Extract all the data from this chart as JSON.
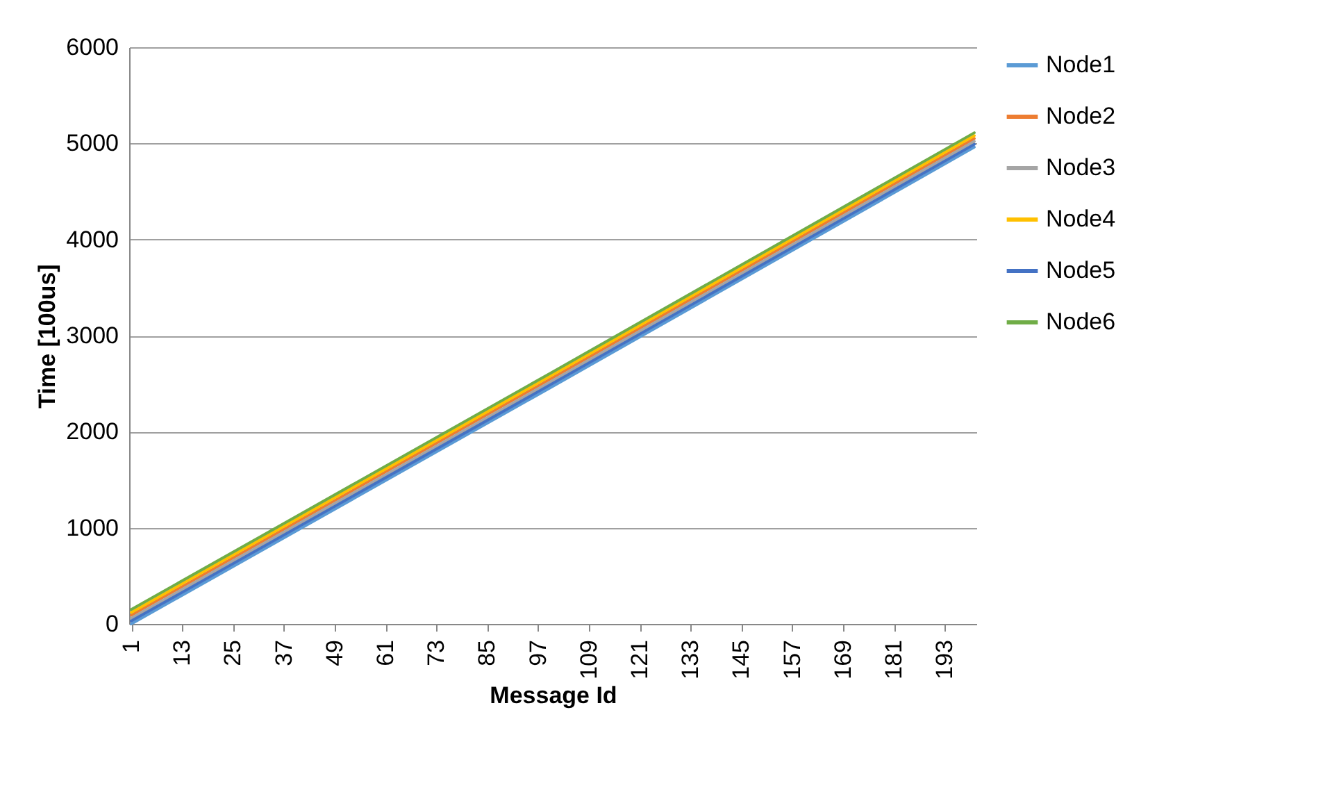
{
  "chart_data": {
    "type": "line",
    "xlabel": "Message Id",
    "ylabel": "Time [100us]",
    "x": [
      1,
      100,
      200
    ],
    "xlim": [
      0.5,
      200.5
    ],
    "xticks": [
      1,
      13,
      25,
      37,
      49,
      61,
      73,
      85,
      97,
      109,
      121,
      133,
      145,
      157,
      169,
      181,
      193
    ],
    "ylim": [
      0,
      6000
    ],
    "yticks": [
      0,
      1000,
      2000,
      3000,
      4000,
      5000,
      6000
    ],
    "grid": "y",
    "legend": "right",
    "marker": "none",
    "line_style": "solid",
    "series": [
      {
        "name": "Node1",
        "color": "#5b9bd5",
        "values": [
          0,
          2460,
          4960
        ]
      },
      {
        "name": "Node2",
        "color": "#ed7d31",
        "values": [
          90,
          2550,
          5050
        ]
      },
      {
        "name": "Node3",
        "color": "#a5a5a5",
        "values": [
          60,
          2520,
          5020
        ]
      },
      {
        "name": "Node4",
        "color": "#ffc000",
        "values": [
          120,
          2580,
          5080
        ]
      },
      {
        "name": "Node5",
        "color": "#4472c4",
        "values": [
          30,
          2490,
          4990
        ]
      },
      {
        "name": "Node6",
        "color": "#70ad47",
        "values": [
          150,
          2610,
          5110
        ]
      }
    ]
  }
}
